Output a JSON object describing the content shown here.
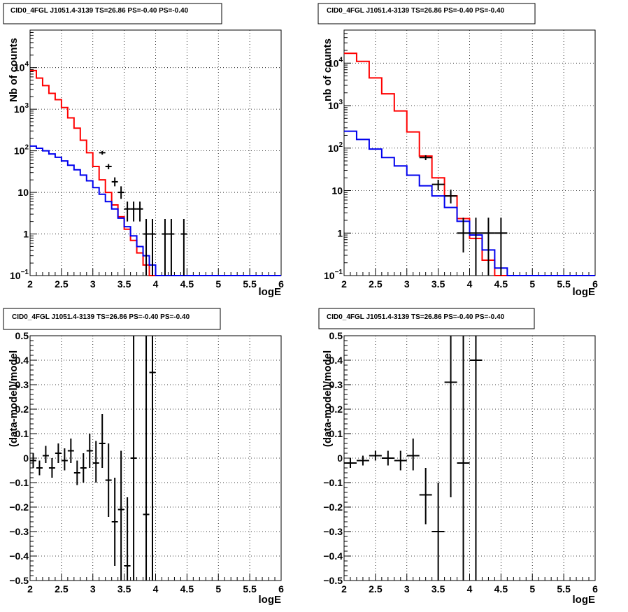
{
  "chart_data": [
    {
      "type": "histogram",
      "title": "CID0_4FGL J1051.4-3139 TS=26.86 PS=-0.40 PS=-0.40",
      "xlabel": "logE",
      "ylabel": "Nb of counts",
      "xlim": [
        2,
        6
      ],
      "ylim": [
        0.1,
        80000
      ],
      "log_y": true,
      "grid": true,
      "x_ticks": [
        "2",
        "2.5",
        "3",
        "3.5",
        "4",
        "4.5",
        "5",
        "5.5",
        "6"
      ],
      "y_ticks": [
        {
          "v": 0.1,
          "base": "10",
          "exp": "−1"
        },
        {
          "v": 1,
          "label": "1"
        },
        {
          "v": 10,
          "label": "10"
        },
        {
          "v": 100,
          "base": "10",
          "exp": "2"
        },
        {
          "v": 1000,
          "base": "10",
          "exp": "3"
        },
        {
          "v": 10000,
          "base": "10",
          "exp": "4"
        }
      ],
      "bin_width": 0.1,
      "series": [
        {
          "color": "#ff0000",
          "values": [
            8500,
            5600,
            3700,
            2400,
            1700,
            1100,
            620,
            350,
            180,
            90,
            42,
            20,
            10,
            5,
            2.6,
            1.3,
            0.7,
            0.35,
            0.18,
            0.1,
            0.1,
            0.1,
            0.1,
            0.1,
            0.1,
            0.1,
            0.1,
            0.1,
            0.1,
            0.1,
            0.1,
            0.1,
            0.1,
            0.1,
            0.1,
            0.1,
            0.1,
            0.1,
            0.1,
            0.1
          ]
        },
        {
          "color": "#0000ee",
          "values": [
            130,
            115,
            100,
            84,
            70,
            57,
            45,
            35,
            26,
            19,
            13,
            9,
            6,
            4,
            2.4,
            1.5,
            0.9,
            0.5,
            0.3,
            0.18,
            0.1,
            0.1,
            0.1,
            0.1,
            0.1,
            0.1,
            0.1,
            0.1,
            0.1,
            0.1,
            0.1,
            0.1,
            0.1,
            0.1,
            0.1,
            0.1,
            0.1,
            0.1,
            0.1,
            0.1
          ]
        }
      ],
      "points": [
        {
          "x": 3.15,
          "y": 90,
          "lo": 81,
          "hi": 99
        },
        {
          "x": 3.25,
          "y": 42,
          "lo": 36,
          "hi": 48
        },
        {
          "x": 3.35,
          "y": 18,
          "lo": 14,
          "hi": 23
        },
        {
          "x": 3.45,
          "y": 10,
          "lo": 7,
          "hi": 14
        },
        {
          "x": 3.55,
          "y": 4,
          "lo": 2,
          "hi": 6
        },
        {
          "x": 3.65,
          "y": 4,
          "lo": 2,
          "hi": 6
        },
        {
          "x": 3.75,
          "y": 4,
          "lo": 2,
          "hi": 6
        },
        {
          "x": 3.85,
          "y": 1,
          "lo": 0.1,
          "hi": 2.3
        },
        {
          "x": 3.95,
          "y": 1,
          "lo": 0.1,
          "hi": 2.3
        },
        {
          "x": 4.15,
          "y": 1,
          "lo": 0.1,
          "hi": 2.3
        },
        {
          "x": 4.25,
          "y": 1,
          "lo": 0.1,
          "hi": 2.3
        },
        {
          "x": 4.45,
          "y": 1,
          "lo": 0.1,
          "hi": 2.3
        }
      ]
    },
    {
      "type": "histogram",
      "title": "CID0_4FGL J1051.4-3139 TS=26.86 PS=-0.40 PS=-0.40",
      "xlabel": "logE",
      "ylabel": "nb of counts",
      "xlim": [
        2,
        6
      ],
      "ylim": [
        0.1,
        60000
      ],
      "log_y": true,
      "grid": true,
      "x_ticks": [
        "2",
        "2.5",
        "3",
        "3.5",
        "4",
        "4.5",
        "5",
        "5.5",
        "6"
      ],
      "y_ticks": [
        {
          "v": 0.1,
          "base": "10",
          "exp": "−1"
        },
        {
          "v": 1,
          "label": "1"
        },
        {
          "v": 10,
          "label": "10"
        },
        {
          "v": 100,
          "base": "10",
          "exp": "2"
        },
        {
          "v": 1000,
          "base": "10",
          "exp": "3"
        },
        {
          "v": 10000,
          "base": "10",
          "exp": "4"
        }
      ],
      "bin_width": 0.2,
      "series": [
        {
          "color": "#ff0000",
          "values": [
            17000,
            11000,
            4500,
            1900,
            750,
            240,
            65,
            20,
            7.5,
            2.2,
            0.75,
            0.23,
            0.1,
            0.1,
            0.1,
            0.1,
            0.1,
            0.1,
            0.1,
            0.1
          ]
        },
        {
          "color": "#0000ee",
          "values": [
            250,
            160,
            95,
            60,
            38,
            23,
            13,
            7.5,
            4,
            1.9,
            0.9,
            0.4,
            0.15,
            0.1,
            0.1,
            0.1,
            0.1,
            0.1,
            0.1,
            0.1
          ]
        }
      ],
      "points": [
        {
          "x": 3.3,
          "y": 60,
          "lo": 52,
          "hi": 68
        },
        {
          "x": 3.5,
          "y": 14,
          "lo": 10,
          "hi": 18
        },
        {
          "x": 3.7,
          "y": 7.5,
          "lo": 5,
          "hi": 10.5
        },
        {
          "x": 3.9,
          "y": 1,
          "lo": 0.35,
          "hi": 2.3
        },
        {
          "x": 4.1,
          "y": 1,
          "lo": 0.1,
          "hi": 2.3
        },
        {
          "x": 4.3,
          "y": 1,
          "lo": 0.1,
          "hi": 2.3
        },
        {
          "x": 4.5,
          "y": 1,
          "lo": 0.1,
          "hi": 2.3
        }
      ]
    },
    {
      "type": "scatter",
      "title": "CID0_4FGL J1051.4-3139 TS=26.86 PS=-0.40 PS=-0.40",
      "xlabel": "logE",
      "ylabel": "(data-model)/model",
      "xlim": [
        2,
        6
      ],
      "ylim": [
        -0.5,
        0.5
      ],
      "log_y": false,
      "grid": true,
      "x_ticks": [
        "2",
        "2.5",
        "3",
        "3.5",
        "4",
        "4.5",
        "5",
        "5.5",
        "6"
      ],
      "y_ticks": [
        {
          "v": -0.5,
          "label": "−0.5"
        },
        {
          "v": -0.4,
          "label": "−0.4"
        },
        {
          "v": -0.3,
          "label": "−0.3"
        },
        {
          "v": -0.2,
          "label": "−0.2"
        },
        {
          "v": -0.1,
          "label": "−0.1"
        },
        {
          "v": 0,
          "label": "0"
        },
        {
          "v": 0.1,
          "label": "0.1"
        },
        {
          "v": 0.2,
          "label": "0.2"
        },
        {
          "v": 0.3,
          "label": "0.3"
        },
        {
          "v": 0.4,
          "label": "0.4"
        },
        {
          "v": 0.5,
          "label": "0.5"
        }
      ],
      "bin_half_width": 0.05,
      "points": [
        {
          "x": 2.05,
          "y": -0.01,
          "lo": -0.04,
          "hi": 0.02
        },
        {
          "x": 2.15,
          "y": -0.04,
          "lo": -0.07,
          "hi": -0.01
        },
        {
          "x": 2.25,
          "y": 0.01,
          "lo": -0.02,
          "hi": 0.05
        },
        {
          "x": 2.35,
          "y": -0.04,
          "lo": -0.08,
          "hi": 0.0
        },
        {
          "x": 2.45,
          "y": 0.02,
          "lo": -0.02,
          "hi": 0.06
        },
        {
          "x": 2.55,
          "y": -0.01,
          "lo": -0.05,
          "hi": 0.04
        },
        {
          "x": 2.65,
          "y": 0.03,
          "lo": -0.02,
          "hi": 0.08
        },
        {
          "x": 2.75,
          "y": -0.06,
          "lo": -0.11,
          "hi": -0.01
        },
        {
          "x": 2.85,
          "y": -0.04,
          "lo": -0.1,
          "hi": 0.02
        },
        {
          "x": 2.95,
          "y": 0.03,
          "lo": -0.04,
          "hi": 0.1
        },
        {
          "x": 3.05,
          "y": -0.02,
          "lo": -0.1,
          "hi": 0.07
        },
        {
          "x": 3.15,
          "y": 0.06,
          "lo": -0.04,
          "hi": 0.18
        },
        {
          "x": 3.25,
          "y": -0.09,
          "lo": -0.24,
          "hi": 0.06
        },
        {
          "x": 3.35,
          "y": -0.26,
          "lo": -0.44,
          "hi": -0.08
        },
        {
          "x": 3.45,
          "y": -0.21,
          "lo": -0.5,
          "hi": 0.03
        },
        {
          "x": 3.55,
          "y": -0.44,
          "lo": -0.5,
          "hi": -0.16
        },
        {
          "x": 3.65,
          "y": 0.0,
          "lo": -0.5,
          "hi": 0.5
        },
        {
          "x": 3.85,
          "y": -0.23,
          "lo": -0.5,
          "hi": 0.5
        },
        {
          "x": 3.95,
          "y": 0.35,
          "lo": -0.5,
          "hi": 0.5
        }
      ]
    },
    {
      "type": "scatter",
      "title": "CID0_4FGL J1051.4-3139 TS=26.86 PS=-0.40 PS=-0.40",
      "xlabel": "logE",
      "ylabel": "(data-model)/model",
      "xlim": [
        2,
        6
      ],
      "ylim": [
        -0.5,
        0.5
      ],
      "log_y": false,
      "grid": true,
      "x_ticks": [
        "2",
        "2.5",
        "3",
        "3.5",
        "4",
        "4.5",
        "5",
        "5.5",
        "6"
      ],
      "y_ticks": [
        {
          "v": -0.5,
          "label": "−0.5"
        },
        {
          "v": -0.4,
          "label": "−0.4"
        },
        {
          "v": -0.3,
          "label": "−0.3"
        },
        {
          "v": -0.2,
          "label": "−0.2"
        },
        {
          "v": -0.1,
          "label": "−0.1"
        },
        {
          "v": 0,
          "label": "0"
        },
        {
          "v": 0.1,
          "label": "0.1"
        },
        {
          "v": 0.2,
          "label": "0.2"
        },
        {
          "v": 0.3,
          "label": "0.3"
        },
        {
          "v": 0.4,
          "label": "0.4"
        },
        {
          "v": 0.5,
          "label": "0.5"
        }
      ],
      "bin_half_width": 0.1,
      "points": [
        {
          "x": 2.1,
          "y": -0.02,
          "lo": -0.04,
          "hi": 0.0
        },
        {
          "x": 2.3,
          "y": -0.01,
          "lo": -0.03,
          "hi": 0.01
        },
        {
          "x": 2.5,
          "y": 0.01,
          "lo": -0.01,
          "hi": 0.03
        },
        {
          "x": 2.7,
          "y": 0.0,
          "lo": -0.03,
          "hi": 0.03
        },
        {
          "x": 2.9,
          "y": -0.01,
          "lo": -0.05,
          "hi": 0.03
        },
        {
          "x": 3.1,
          "y": 0.01,
          "lo": -0.05,
          "hi": 0.08
        },
        {
          "x": 3.3,
          "y": -0.15,
          "lo": -0.27,
          "hi": -0.04
        },
        {
          "x": 3.5,
          "y": -0.3,
          "lo": -0.5,
          "hi": -0.1
        },
        {
          "x": 3.7,
          "y": 0.31,
          "lo": -0.16,
          "hi": 0.5
        },
        {
          "x": 3.9,
          "y": -0.02,
          "lo": -0.5,
          "hi": 0.5
        },
        {
          "x": 4.1,
          "y": 0.4,
          "lo": -0.5,
          "hi": 0.5
        }
      ]
    }
  ]
}
